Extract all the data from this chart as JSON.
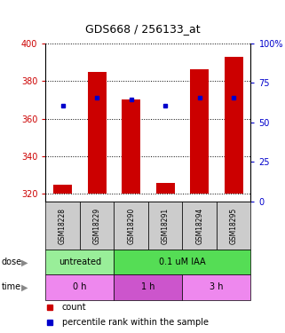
{
  "title": "GDS668 / 256133_at",
  "samples": [
    "GSM18228",
    "GSM18229",
    "GSM18290",
    "GSM18291",
    "GSM18294",
    "GSM18295"
  ],
  "bar_bottoms": [
    320,
    320,
    320,
    320,
    320,
    320
  ],
  "bar_tops": [
    325,
    385,
    370,
    326,
    386,
    393
  ],
  "percentile_values": [
    367,
    371,
    370,
    367,
    371,
    371
  ],
  "ylim_left": [
    316,
    400
  ],
  "ylim_right": [
    0,
    100
  ],
  "yticks_left": [
    320,
    340,
    360,
    380,
    400
  ],
  "yticks_right": [
    0,
    25,
    50,
    75,
    100
  ],
  "bar_color": "#cc0000",
  "percentile_color": "#0000cc",
  "dose_labels": [
    {
      "text": "untreated",
      "span": [
        0,
        2
      ],
      "color": "#99ee99"
    },
    {
      "text": "0.1 uM IAA",
      "span": [
        2,
        6
      ],
      "color": "#55dd55"
    }
  ],
  "time_labels": [
    {
      "text": "0 h",
      "span": [
        0,
        2
      ],
      "color": "#ee88ee"
    },
    {
      "text": "1 h",
      "span": [
        2,
        4
      ],
      "color": "#cc55cc"
    },
    {
      "text": "3 h",
      "span": [
        4,
        6
      ],
      "color": "#ee88ee"
    }
  ],
  "legend_count_color": "#cc0000",
  "legend_percentile_color": "#0000cc",
  "grid_color": "black",
  "background_color": "#ffffff",
  "tick_color_left": "#cc0000",
  "tick_color_right": "#0000cc",
  "sample_bg": "#cccccc"
}
